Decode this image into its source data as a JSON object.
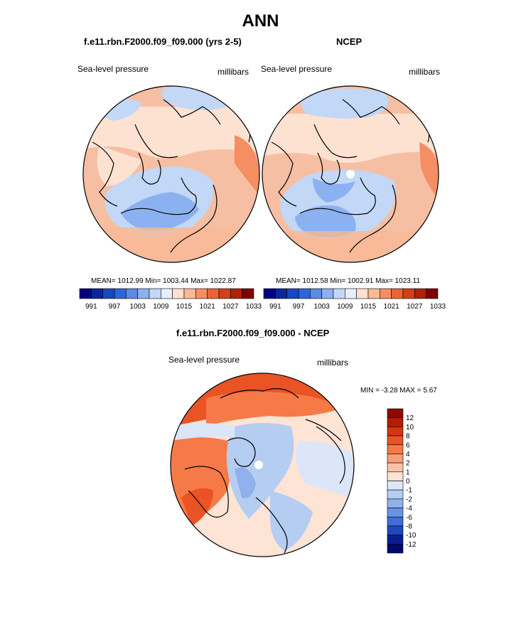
{
  "page_title": "ANN",
  "chart_data": [
    {
      "type": "heatmap",
      "title": "f.e11.rbn.F2000.f09_f09.000 (yrs 2-5)",
      "left_label": "Sea-level pressure",
      "right_label": "millibars",
      "stats": {
        "mean": "1012.99",
        "min": "1003.44",
        "max": "1022.87"
      },
      "stats_text": "MEAN= 1012.99  Min= 1003.44  Max= 1022.87",
      "colorbar": {
        "levels": [
          991,
          994,
          997,
          1000,
          1003,
          1006,
          1009,
          1012,
          1015,
          1018,
          1021,
          1024,
          1027,
          1030,
          1033
        ],
        "tick_labels": [
          "991",
          "997",
          "1003",
          "1009",
          "1015",
          "1021",
          "1027",
          "1033"
        ],
        "colors": [
          "#00007f",
          "#08279b",
          "#1848c0",
          "#2f63db",
          "#5b8be6",
          "#8cb1f0",
          "#c2d8f6",
          "#e6eefb",
          "#fde0d0",
          "#f9b995",
          "#f58e62",
          "#ea6436",
          "#d43e1a",
          "#ae2208",
          "#7f0000"
        ]
      }
    },
    {
      "type": "heatmap",
      "title": "NCEP",
      "left_label": "Sea-level pressure",
      "right_label": "millibars",
      "stats": {
        "mean": "1012.58",
        "min": "1002.91",
        "max": "1023.11"
      },
      "stats_text": "MEAN= 1012.58  Min= 1002.91  Max= 1023.11",
      "colorbar": {
        "levels": [
          991,
          994,
          997,
          1000,
          1003,
          1006,
          1009,
          1012,
          1015,
          1018,
          1021,
          1024,
          1027,
          1030,
          1033
        ],
        "tick_labels": [
          "991",
          "997",
          "1003",
          "1009",
          "1015",
          "1021",
          "1027",
          "1033"
        ],
        "colors": [
          "#00007f",
          "#08279b",
          "#1848c0",
          "#2f63db",
          "#5b8be6",
          "#8cb1f0",
          "#c2d8f6",
          "#e6eefb",
          "#fde0d0",
          "#f9b995",
          "#f58e62",
          "#ea6436",
          "#d43e1a",
          "#ae2208",
          "#7f0000"
        ]
      }
    },
    {
      "type": "heatmap",
      "title": "f.e11.rbn.F2000.f09_f09.000 - NCEP",
      "left_label": "Sea-level pressure",
      "right_label": "millibars",
      "stats": {
        "min": "-3.28",
        "max": "5.67"
      },
      "stats_text": "MIN =  -3.28 MAX =   5.67",
      "colorbar": {
        "levels": [
          12,
          10,
          8,
          6,
          4,
          2,
          1,
          0,
          -1,
          -2,
          -4,
          -6,
          -8,
          -10,
          -12
        ],
        "tick_labels": [
          "12",
          "10",
          "8",
          "6",
          "4",
          "2",
          "1",
          "0",
          "-1",
          "-2",
          "-4",
          "-6",
          "-8",
          "-10",
          "-12"
        ],
        "colors": [
          "#8c0a00",
          "#b51c05",
          "#d43512",
          "#ea5424",
          "#f57a48",
          "#f89f76",
          "#fbc3a6",
          "#fde4d5",
          "#dbe6f8",
          "#b6cdf2",
          "#8fb1ec",
          "#6a93e5",
          "#3f6ed8",
          "#1d48c0",
          "#0a1f8f",
          "#000a6e"
        ]
      }
    }
  ]
}
